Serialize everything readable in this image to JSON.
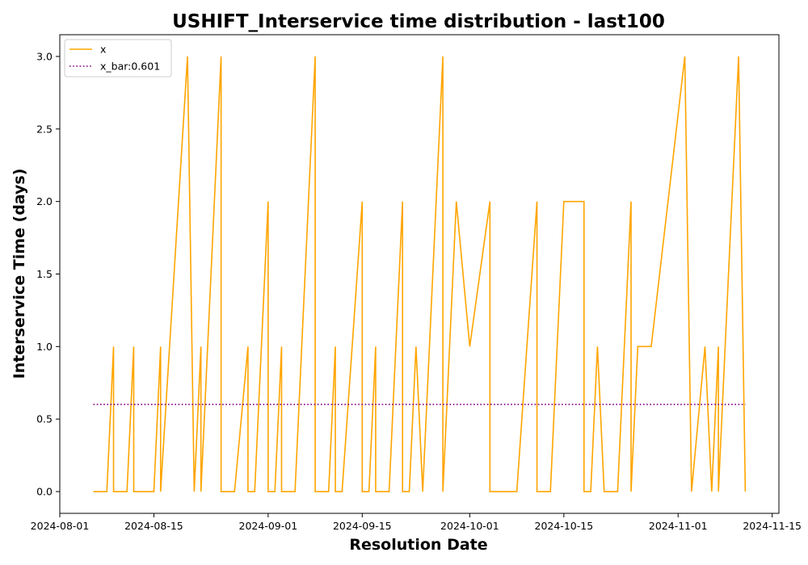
{
  "chart_data": {
    "type": "line",
    "title": "USHIFT_Interservice time distribution - last100",
    "xlabel": "Resolution Date",
    "ylabel": "Interservice Time (days)",
    "xlim": [
      "2024-08-01",
      "2024-11-16"
    ],
    "ylim": [
      -0.15,
      3.15
    ],
    "x_ticks": [
      "2024-08-01",
      "2024-08-15",
      "2024-09-01",
      "2024-09-15",
      "2024-10-01",
      "2024-10-15",
      "2024-11-01",
      "2024-11-15"
    ],
    "y_ticks": [
      "0.0",
      "0.5",
      "1.0",
      "1.5",
      "2.0",
      "2.5",
      "3.0"
    ],
    "legend": {
      "placement": "upper-left",
      "entries": [
        "x",
        "x_bar:0.601"
      ]
    },
    "grid": false,
    "series": [
      {
        "name": "x",
        "color": "#ffa500",
        "style": "solid",
        "points": [
          [
            "2024-08-06",
            0
          ],
          [
            "2024-08-07",
            0
          ],
          [
            "2024-08-08",
            0
          ],
          [
            "2024-08-09",
            1
          ],
          [
            "2024-08-09",
            0
          ],
          [
            "2024-08-10",
            0
          ],
          [
            "2024-08-11",
            0
          ],
          [
            "2024-08-12",
            1
          ],
          [
            "2024-08-12",
            0
          ],
          [
            "2024-08-13",
            0
          ],
          [
            "2024-08-14",
            0
          ],
          [
            "2024-08-15",
            0
          ],
          [
            "2024-08-16",
            1
          ],
          [
            "2024-08-16",
            0
          ],
          [
            "2024-08-20",
            3
          ],
          [
            "2024-08-21",
            0
          ],
          [
            "2024-08-22",
            1
          ],
          [
            "2024-08-22",
            0
          ],
          [
            "2024-08-25",
            3
          ],
          [
            "2024-08-25",
            0
          ],
          [
            "2024-08-26",
            0
          ],
          [
            "2024-08-27",
            0
          ],
          [
            "2024-08-29",
            1
          ],
          [
            "2024-08-29",
            0
          ],
          [
            "2024-08-30",
            0
          ],
          [
            "2024-09-01",
            2
          ],
          [
            "2024-09-01",
            0
          ],
          [
            "2024-09-02",
            0
          ],
          [
            "2024-09-03",
            1
          ],
          [
            "2024-09-03",
            0
          ],
          [
            "2024-09-04",
            0
          ],
          [
            "2024-09-05",
            0
          ],
          [
            "2024-09-08",
            3
          ],
          [
            "2024-09-08",
            0
          ],
          [
            "2024-09-09",
            0
          ],
          [
            "2024-09-10",
            0
          ],
          [
            "2024-09-11",
            1
          ],
          [
            "2024-09-11",
            0
          ],
          [
            "2024-09-12",
            0
          ],
          [
            "2024-09-15",
            2
          ],
          [
            "2024-09-15",
            0
          ],
          [
            "2024-09-16",
            0
          ],
          [
            "2024-09-17",
            1
          ],
          [
            "2024-09-17",
            0
          ],
          [
            "2024-09-18",
            0
          ],
          [
            "2024-09-19",
            0
          ],
          [
            "2024-09-21",
            2
          ],
          [
            "2024-09-21",
            0
          ],
          [
            "2024-09-22",
            0
          ],
          [
            "2024-09-23",
            1
          ],
          [
            "2024-09-24",
            0
          ],
          [
            "2024-09-27",
            3
          ],
          [
            "2024-09-27",
            0
          ],
          [
            "2024-09-29",
            2
          ],
          [
            "2024-10-01",
            1
          ],
          [
            "2024-10-04",
            2
          ],
          [
            "2024-10-04",
            0
          ],
          [
            "2024-10-05",
            0
          ],
          [
            "2024-10-06",
            0
          ],
          [
            "2024-10-07",
            0
          ],
          [
            "2024-10-08",
            0
          ],
          [
            "2024-10-11",
            2
          ],
          [
            "2024-10-11",
            0
          ],
          [
            "2024-10-12",
            0
          ],
          [
            "2024-10-13",
            0
          ],
          [
            "2024-10-15",
            2
          ],
          [
            "2024-10-16",
            2
          ],
          [
            "2024-10-17",
            2
          ],
          [
            "2024-10-18",
            2
          ],
          [
            "2024-10-18",
            0
          ],
          [
            "2024-10-19",
            0
          ],
          [
            "2024-10-20",
            1
          ],
          [
            "2024-10-21",
            0
          ],
          [
            "2024-10-22",
            0
          ],
          [
            "2024-10-23",
            0
          ],
          [
            "2024-10-25",
            2
          ],
          [
            "2024-10-25",
            0
          ],
          [
            "2024-10-26",
            1
          ],
          [
            "2024-10-27",
            1
          ],
          [
            "2024-10-28",
            1
          ],
          [
            "2024-11-02",
            3
          ],
          [
            "2024-11-03",
            0
          ],
          [
            "2024-11-05",
            1
          ],
          [
            "2024-11-06",
            0
          ],
          [
            "2024-11-07",
            1
          ],
          [
            "2024-11-07",
            0
          ],
          [
            "2024-11-10",
            3
          ],
          [
            "2024-11-11",
            0
          ]
        ]
      },
      {
        "name": "x_bar:0.601",
        "color": "#800080",
        "style": "dotted",
        "points": [
          [
            "2024-08-06",
            0.601
          ],
          [
            "2024-11-11",
            0.601
          ]
        ]
      }
    ]
  }
}
